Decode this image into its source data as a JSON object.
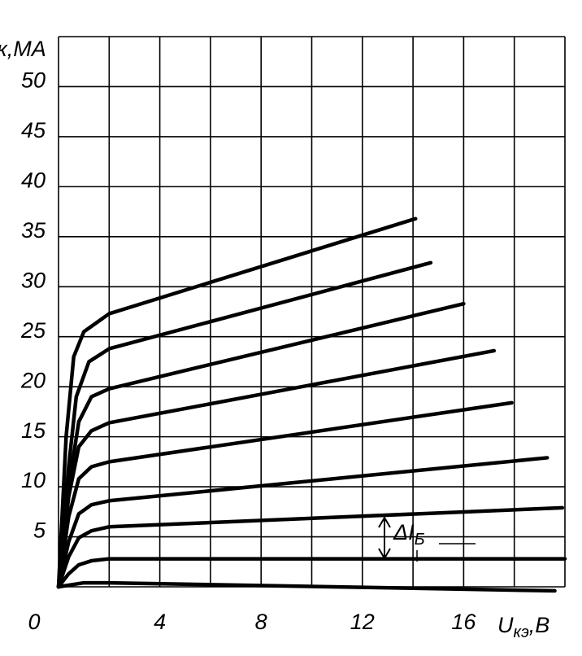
{
  "chart_data": {
    "type": "line",
    "y_label": "к,МА",
    "x_label": {
      "main": "U",
      "sub": "кэ",
      "unit": ",В"
    },
    "annotation": {
      "main": "ΔI",
      "sub": "Б"
    },
    "xlim": [
      0,
      20
    ],
    "ylim": [
      0,
      55
    ],
    "xticks": [
      0,
      4,
      8,
      12,
      16
    ],
    "yticks": [
      5,
      10,
      15,
      20,
      25,
      30,
      35,
      40,
      45,
      50
    ],
    "xgrid": [
      0,
      2,
      4,
      6,
      8,
      10,
      12,
      14,
      16,
      18,
      20
    ],
    "ygrid": [
      0,
      5,
      10,
      15,
      20,
      25,
      30,
      35,
      40,
      45,
      50,
      55
    ],
    "color": "#000000",
    "series": [
      {
        "x": [
          0,
          0.3,
          0.6,
          1,
          2,
          14.1
        ],
        "values": [
          0,
          15,
          23,
          25.5,
          27.3,
          36.8
        ]
      },
      {
        "x": [
          0,
          0.4,
          0.7,
          1.2,
          2,
          14.7
        ],
        "values": [
          0,
          12,
          19,
          22.5,
          23.8,
          32.4
        ]
      },
      {
        "x": [
          0,
          0.4,
          0.8,
          1.3,
          2,
          16
        ],
        "values": [
          0,
          10,
          16.5,
          19,
          19.8,
          28.3
        ]
      },
      {
        "x": [
          0,
          0.4,
          0.8,
          1.3,
          2,
          17.2
        ],
        "values": [
          0,
          9,
          14,
          15.6,
          16.4,
          23.6
        ]
      },
      {
        "x": [
          0,
          0.4,
          0.8,
          1.3,
          2,
          17.9
        ],
        "values": [
          0,
          7,
          10.8,
          12,
          12.5,
          18.4
        ]
      },
      {
        "x": [
          0,
          0.4,
          0.8,
          1.3,
          2,
          19.3
        ],
        "values": [
          0,
          4.5,
          7.3,
          8.2,
          8.6,
          12.9
        ]
      },
      {
        "x": [
          0,
          0.4,
          0.8,
          1.3,
          2,
          19.9
        ],
        "values": [
          0,
          3,
          4.9,
          5.6,
          6,
          7.9
        ]
      },
      {
        "x": [
          0,
          0.4,
          0.8,
          1.3,
          2,
          20
        ],
        "values": [
          0,
          1.3,
          2.2,
          2.6,
          2.8,
          2.8
        ]
      },
      {
        "x": [
          0,
          1,
          2,
          19.6
        ],
        "values": [
          0,
          0.4,
          0.4,
          -0.4
        ]
      }
    ]
  }
}
